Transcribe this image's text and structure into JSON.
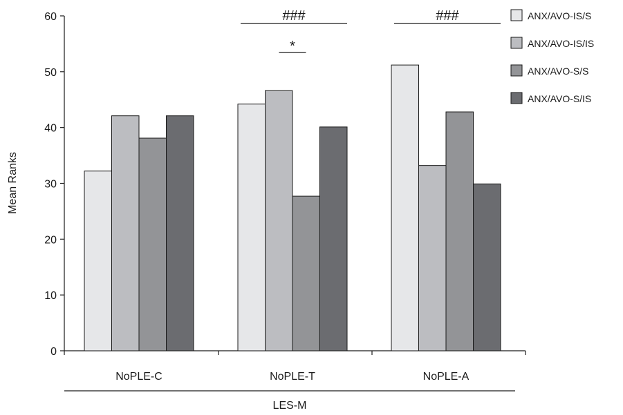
{
  "chart_data": {
    "type": "bar",
    "title": "",
    "ylabel": "Mean Ranks",
    "xlabel": "LES-M",
    "ylim": [
      0,
      60
    ],
    "yticks": [
      0,
      10,
      20,
      30,
      40,
      50,
      60
    ],
    "categories": [
      "NoPLE-C",
      "NoPLE-T",
      "NoPLE-A"
    ],
    "series": [
      {
        "name": "ANX/AVO-IS/S",
        "color": "#e6e7e9",
        "values": [
          32.2,
          44.2,
          51.2
        ]
      },
      {
        "name": "ANX/AVO-IS/IS",
        "color": "#bcbdc1",
        "values": [
          42.1,
          46.6,
          33.2
        ]
      },
      {
        "name": "ANX/AVO-S/S",
        "color": "#939497",
        "values": [
          38.1,
          27.7,
          42.8
        ]
      },
      {
        "name": "ANX/AVO-S/IS",
        "color": "#6b6c70",
        "values": [
          42.1,
          40.1,
          29.9
        ]
      }
    ],
    "legend_position": "top-right",
    "grid": false,
    "annotations": [
      {
        "text": "###",
        "category": "NoPLE-T",
        "series_from": 0,
        "series_to": 3,
        "level": 1
      },
      {
        "text": "*",
        "category": "NoPLE-T",
        "series_from": 1,
        "series_to": 2,
        "level": 2
      },
      {
        "text": "###",
        "category": "NoPLE-A",
        "series_from": 0,
        "series_to": 3,
        "level": 1
      }
    ]
  }
}
